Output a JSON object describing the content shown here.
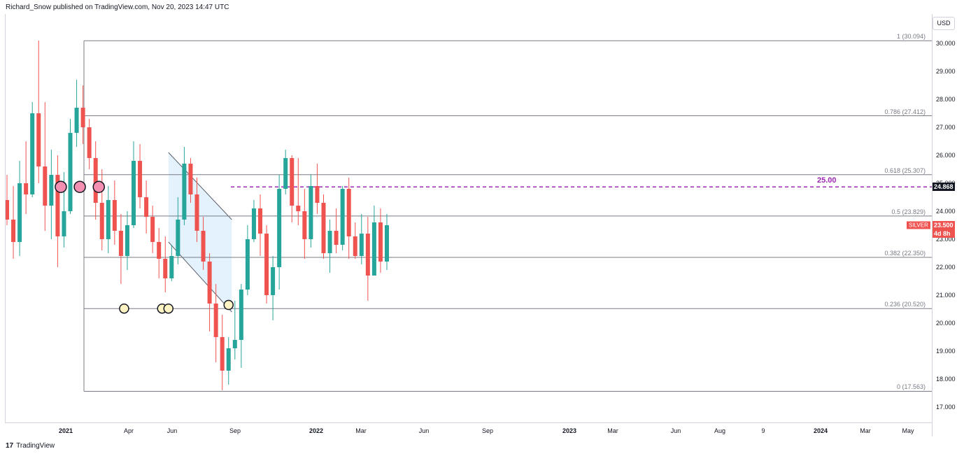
{
  "header": {
    "publisher_line": "Richard_Snow published on TradingView.com, Nov 20, 2023 14:47 UTC"
  },
  "currency": "USD",
  "brand": {
    "logo": "17",
    "name": "TradingView"
  },
  "symbol_badge": {
    "symbol": "SILVER",
    "price": "23.500",
    "countdown": "4d 8h"
  },
  "level_badge": "24.868",
  "level_label": "25.00",
  "chart_data": {
    "type": "candlestick",
    "title": "",
    "xlabel": "",
    "ylabel": "",
    "ylim": [
      16.5,
      31.2
    ],
    "yticks": [
      "30.000",
      "29.000",
      "28.000",
      "27.000",
      "26.000",
      "25.000",
      "24.000",
      "23.000",
      "22.000",
      "21.000",
      "20.000",
      "19.000",
      "18.000",
      "17.000"
    ],
    "xticks": [
      {
        "label": "2021",
        "bold": true
      },
      {
        "label": "Apr",
        "bold": false
      },
      {
        "label": "Jun",
        "bold": false
      },
      {
        "label": "Sep",
        "bold": false
      },
      {
        "label": "2022",
        "bold": true
      },
      {
        "label": "Mar",
        "bold": false
      },
      {
        "label": "Jun",
        "bold": false
      },
      {
        "label": "Sep",
        "bold": false
      },
      {
        "label": "2023",
        "bold": true
      },
      {
        "label": "Mar",
        "bold": false
      },
      {
        "label": "Jun",
        "bold": false
      },
      {
        "label": "Aug",
        "bold": false
      },
      {
        "label": "9",
        "bold": false
      },
      {
        "label": "2024",
        "bold": true
      },
      {
        "label": "Mar",
        "bold": false
      },
      {
        "label": "May",
        "bold": false
      }
    ],
    "fib_levels": [
      {
        "ratio": "1",
        "value": 30.094,
        "label": "1 (30.094)"
      },
      {
        "ratio": "0.786",
        "value": 27.412,
        "label": "0.786 (27.412)"
      },
      {
        "ratio": "0.618",
        "value": 25.307,
        "label": "0.618 (25.307)"
      },
      {
        "ratio": "0.5",
        "value": 23.829,
        "label": "0.5 (23.829)"
      },
      {
        "ratio": "0.382",
        "value": 22.35,
        "label": "0.382 (22.350)"
      },
      {
        "ratio": "0.236",
        "value": 20.52,
        "label": "0.236 (20.520)"
      },
      {
        "ratio": "0",
        "value": 17.563,
        "label": "0 (17.563)"
      }
    ],
    "horizontal_level": 24.868,
    "channel": {
      "upper": [
        [
          25.5,
          26.1
        ],
        [
          35.5,
          23.7
        ]
      ],
      "lower": [
        [
          25.5,
          22.9
        ],
        [
          35.5,
          20.4
        ]
      ]
    },
    "pink_markers": [
      [
        8.5,
        24.87
      ],
      [
        11.5,
        24.87
      ],
      [
        14.5,
        24.87
      ]
    ],
    "yellow_markers": [
      [
        18.5,
        20.52
      ],
      [
        24.5,
        20.52
      ],
      [
        25.5,
        20.52
      ],
      [
        35.0,
        20.65
      ]
    ],
    "candles": [
      [
        24.4,
        25.3,
        23.5,
        23.7
      ],
      [
        23.7,
        24.9,
        22.3,
        22.9
      ],
      [
        22.9,
        25.8,
        22.4,
        25.0
      ],
      [
        25.0,
        26.5,
        23.9,
        24.6
      ],
      [
        24.6,
        27.9,
        24.5,
        27.5
      ],
      [
        27.5,
        30.1,
        25.0,
        25.6
      ],
      [
        25.6,
        27.9,
        23.3,
        24.2
      ],
      [
        24.2,
        26.2,
        23.0,
        25.3
      ],
      [
        25.3,
        26.0,
        22.0,
        23.1
      ],
      [
        23.1,
        25.4,
        22.7,
        24.0
      ],
      [
        24.0,
        27.3,
        23.9,
        26.8
      ],
      [
        26.8,
        28.7,
        26.3,
        27.7
      ],
      [
        27.7,
        28.5,
        26.4,
        27.0
      ],
      [
        27.0,
        27.3,
        25.5,
        25.9
      ],
      [
        25.9,
        26.5,
        23.7,
        24.3
      ],
      [
        24.3,
        25.5,
        22.6,
        23.0
      ],
      [
        23.0,
        24.9,
        22.5,
        24.4
      ],
      [
        24.4,
        25.1,
        22.8,
        23.3
      ],
      [
        23.3,
        23.9,
        21.4,
        22.4
      ],
      [
        22.4,
        24.0,
        21.9,
        23.5
      ],
      [
        23.5,
        26.5,
        23.4,
        25.8
      ],
      [
        25.8,
        26.4,
        24.1,
        24.5
      ],
      [
        24.5,
        25.1,
        23.2,
        23.8
      ],
      [
        23.8,
        24.2,
        22.5,
        22.9
      ],
      [
        22.9,
        23.4,
        21.6,
        22.3
      ],
      [
        22.3,
        23.1,
        21.1,
        21.6
      ],
      [
        21.6,
        22.8,
        21.5,
        22.4
      ],
      [
        22.4,
        24.5,
        22.1,
        23.7
      ],
      [
        23.7,
        26.3,
        23.5,
        25.7
      ],
      [
        25.7,
        25.9,
        24.3,
        24.6
      ],
      [
        24.6,
        25.2,
        22.9,
        23.3
      ],
      [
        23.3,
        23.8,
        21.9,
        22.2
      ],
      [
        22.2,
        22.5,
        19.7,
        20.7
      ],
      [
        20.7,
        21.4,
        18.6,
        19.5
      ],
      [
        19.5,
        20.3,
        17.6,
        18.3
      ],
      [
        18.3,
        19.5,
        17.8,
        19.1
      ],
      [
        19.1,
        20.8,
        18.7,
        19.4
      ],
      [
        19.4,
        21.4,
        18.4,
        21.2
      ],
      [
        21.2,
        23.5,
        21.0,
        23.0
      ],
      [
        23.0,
        24.4,
        22.9,
        24.1
      ],
      [
        24.1,
        24.6,
        22.4,
        23.2
      ],
      [
        23.2,
        23.5,
        20.7,
        21.0
      ],
      [
        21.0,
        22.4,
        20.1,
        22.0
      ],
      [
        22.0,
        25.3,
        21.2,
        24.8
      ],
      [
        24.8,
        26.2,
        24.6,
        25.9
      ],
      [
        25.9,
        26.0,
        23.6,
        24.2
      ],
      [
        24.2,
        25.9,
        23.5,
        24.0
      ],
      [
        24.0,
        24.8,
        22.3,
        23.0
      ],
      [
        23.0,
        25.3,
        22.7,
        24.9
      ],
      [
        24.9,
        25.7,
        23.9,
        24.3
      ],
      [
        24.3,
        24.6,
        22.3,
        22.5
      ],
      [
        22.5,
        23.7,
        21.8,
        23.3
      ],
      [
        23.3,
        24.1,
        22.5,
        22.8
      ],
      [
        22.8,
        24.9,
        22.6,
        24.8
      ],
      [
        24.8,
        25.2,
        22.3,
        23.1
      ],
      [
        23.1,
        23.6,
        22.3,
        22.4
      ],
      [
        22.4,
        23.9,
        22.1,
        23.2
      ],
      [
        23.2,
        23.8,
        20.8,
        21.7
      ],
      [
        21.7,
        24.2,
        21.7,
        23.6
      ],
      [
        23.6,
        24.1,
        21.8,
        22.2
      ],
      [
        22.2,
        23.9,
        21.9,
        23.5
      ]
    ]
  }
}
